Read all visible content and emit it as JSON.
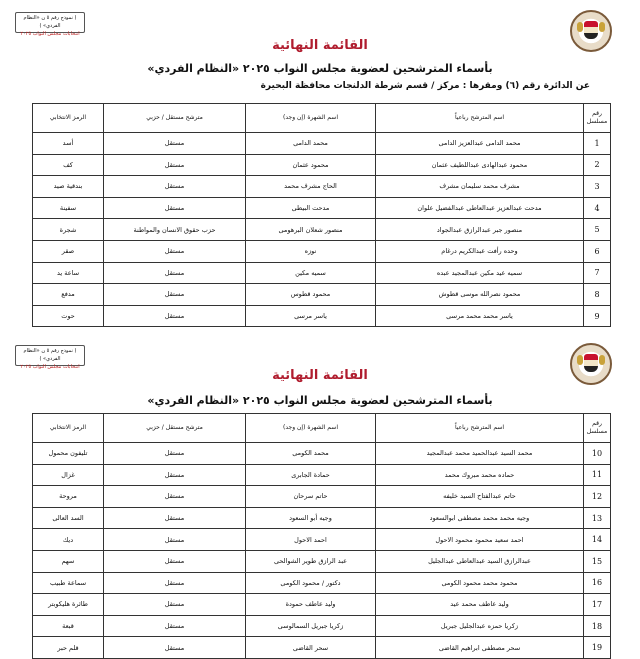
{
  "pages": [
    {
      "model_box": {
        "line1": "( نموذج رقم ٥ ن «النظام الفردي» )",
        "line2": "انتخابات مجلس النواب ٢٠٢٥"
      },
      "title": "القائمة النهائية",
      "subtitle": "بأسماء المترشحين لعضوية مجلس النواب ٢٠٢٥ «النظام الفردي»",
      "district_line": "عن الدائرة رقم (٦)   ومقرها : مركز / قسم شرطة الدلنجات   محافظة البحيرة",
      "columns": [
        "رقم مسلسل",
        "اسم المترشح رباعياً",
        "اسم الشهرة (إن وجد)",
        "مترشح مستقل / حزبي",
        "الرمز الانتخابي"
      ],
      "rows": [
        [
          "1",
          "محمد الدامى عبدالعزيز الدامى",
          "محمد الدامى",
          "مستقل",
          "أسد"
        ],
        [
          "2",
          "محمود عبدالهادى عبداللطيف عثمان",
          "محمود عثمان",
          "مستقل",
          "كف"
        ],
        [
          "3",
          "مشرف محمد سليمان مشرف",
          "الحاج مشرف محمد",
          "مستقل",
          "بندقية صيد"
        ],
        [
          "4",
          "مدحت عبدالعزيز عبدالعاطى عبدالفضيل علوان",
          "مدحت البيطى",
          "مستقل",
          "سفينة"
        ],
        [
          "5",
          "منصور جبر عبدالرازق عبدالجواد",
          "منصور شعلان البرهومى",
          "حزب حقوق الانسان والمواطنة",
          "شجرة"
        ],
        [
          "6",
          "وحده رأفت عبدالكريم درغام",
          "نوزه",
          "مستقل",
          "صقر"
        ],
        [
          "7",
          "سميه عيد مكين عبدالمجيد عبده",
          "سميه مكين",
          "مستقل",
          "ساعة يد"
        ],
        [
          "8",
          "محمود نصرالله موسى قطوش",
          "محمود قطوس",
          "مستقل",
          "مدفع"
        ],
        [
          "9",
          "ياسر محمد محمد مرسى",
          "ياسر مرسى",
          "مستقل",
          "حوت"
        ]
      ]
    },
    {
      "model_box": {
        "line1": "( نموذج رقم ٥ ن «النظام الفردي» )",
        "line2": "انتخابات مجلس النواب ٢٠٢٥"
      },
      "title": "القائمة النهائية",
      "subtitle": "بأسماء المترشحين لعضوية مجلس النواب ٢٠٢٥ «النظام الفردي»",
      "columns": [
        "رقم مسلسل",
        "اسم المترشح رباعياً",
        "اسم الشهرة (إن وجد)",
        "مترشح مستقل / حزبي",
        "الرمز الانتخابي"
      ],
      "rows": [
        [
          "10",
          "محمد السيد عبدالحميد محمد عبدالمجيد",
          "محمد الكومى",
          "مستقل",
          "تليفون محمول"
        ],
        [
          "11",
          "حماده محمد مبروك محمد",
          "حمادة الجابرى",
          "مستقل",
          "غزال"
        ],
        [
          "12",
          "حاتم عبدالفتاح السيد خليفه",
          "حاتم سرحان",
          "مستقل",
          "مروحة"
        ],
        [
          "13",
          "وجيه محمد محمد مصطفى ابوالسعود",
          "وجيه أبو السعود",
          "مستقل",
          "السد العالى"
        ],
        [
          "14",
          "احمد سعيد محمود محمود الاحول",
          "احمد الاحول",
          "مستقل",
          "ديك"
        ],
        [
          "15",
          "عبدالرازق السيد عبدالعاطى عبدالجليل",
          "عبد الرازق طوير الشوالحى",
          "مستقل",
          "سهم"
        ],
        [
          "16",
          "محمود محمد محمود الكومى",
          "دكتور / محمود الكومى",
          "مستقل",
          "سماعة طبيب"
        ],
        [
          "17",
          "وليد عاطف محمد عيد",
          "وليد عاطف حمودة",
          "مستقل",
          "طائرة هليكوبتر"
        ],
        [
          "18",
          "زكريا حمزه عبدالجليل جبريل",
          "زكريا جبريل السمالوسى",
          "مستقل",
          "قبعة"
        ],
        [
          "19",
          "سحر مصطفى ابراهيم القاضى",
          "سحر القاضى",
          "مستقل",
          "قلم حبر"
        ]
      ]
    }
  ]
}
